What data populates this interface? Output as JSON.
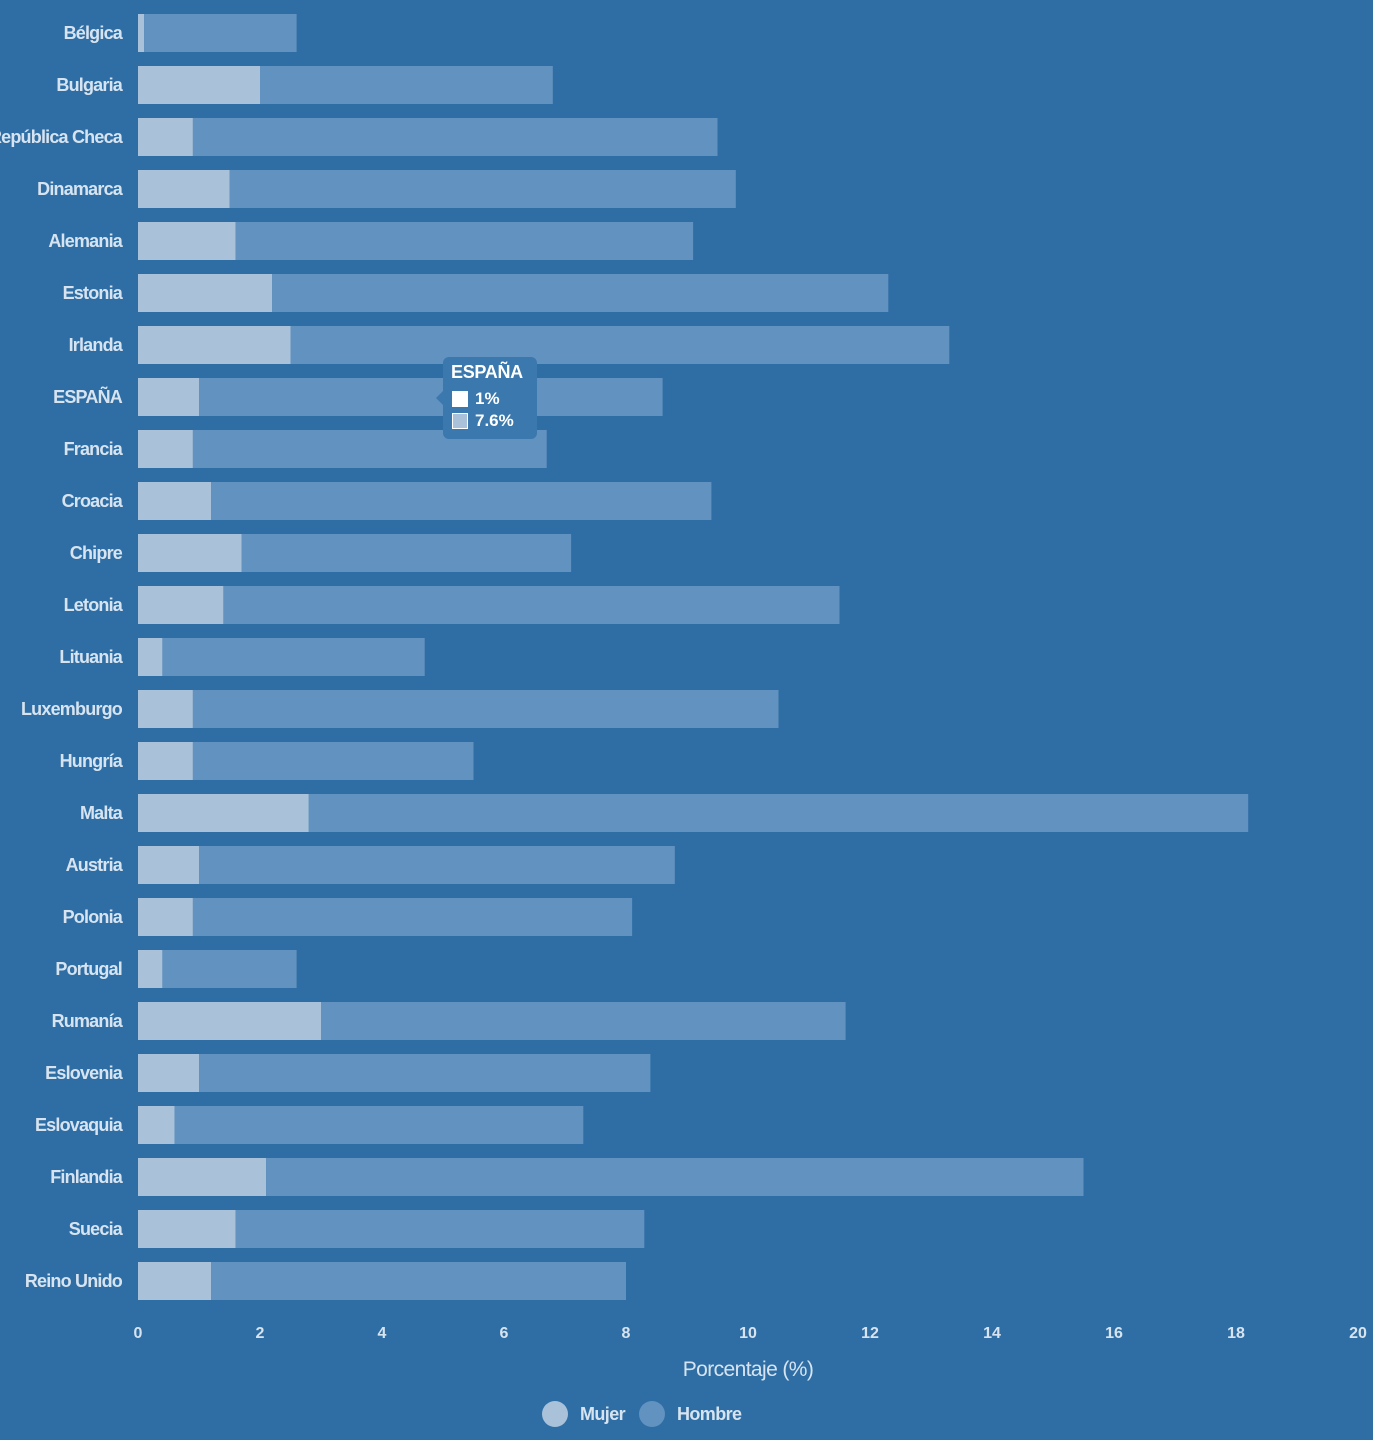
{
  "chart_data": {
    "type": "bar",
    "orientation": "horizontal",
    "stacked": true,
    "categories": [
      "Bélgica",
      "Bulgaria",
      "República Checa",
      "Dinamarca",
      "Alemania",
      "Estonia",
      "Irlanda",
      "ESPAÑA",
      "Francia",
      "Croacia",
      "Chipre",
      "Letonia",
      "Lituania",
      "Luxemburgo",
      "Hungría",
      "Malta",
      "Austria",
      "Polonia",
      "Portugal",
      "Rumanía",
      "Eslovenia",
      "Eslovaquia",
      "Finlandia",
      "Suecia",
      "Reino Unido"
    ],
    "series": [
      {
        "name": "Mujer",
        "color": "#a9c2da",
        "values": [
          0.1,
          2.0,
          0.9,
          1.5,
          1.6,
          2.2,
          2.5,
          1.0,
          0.9,
          1.2,
          1.7,
          1.4,
          0.4,
          0.9,
          0.9,
          2.8,
          1.0,
          0.9,
          0.4,
          3.0,
          1.0,
          0.6,
          2.1,
          1.6,
          1.2
        ]
      },
      {
        "name": "Hombre",
        "color": "#6292bf",
        "values": [
          2.5,
          4.8,
          8.6,
          8.3,
          7.5,
          10.1,
          10.8,
          7.6,
          5.8,
          8.2,
          5.4,
          10.1,
          4.3,
          9.6,
          4.6,
          15.4,
          7.8,
          7.2,
          2.2,
          8.6,
          7.4,
          6.7,
          13.4,
          6.7,
          6.8
        ]
      }
    ],
    "xlabel": "Porcentaje (%)",
    "ylabel": "",
    "xlim": [
      0,
      20
    ],
    "xticks": [
      "0",
      "2",
      "4",
      "6",
      "8",
      "10",
      "12",
      "14",
      "16",
      "18",
      "20"
    ],
    "grid": false,
    "legend": "bottom-center",
    "tooltip": {
      "title": "ESPAÑA",
      "items": [
        {
          "label": "1%",
          "color": "#ffffff"
        },
        {
          "label": "7.6%",
          "color": "#a9c2da"
        }
      ]
    }
  }
}
